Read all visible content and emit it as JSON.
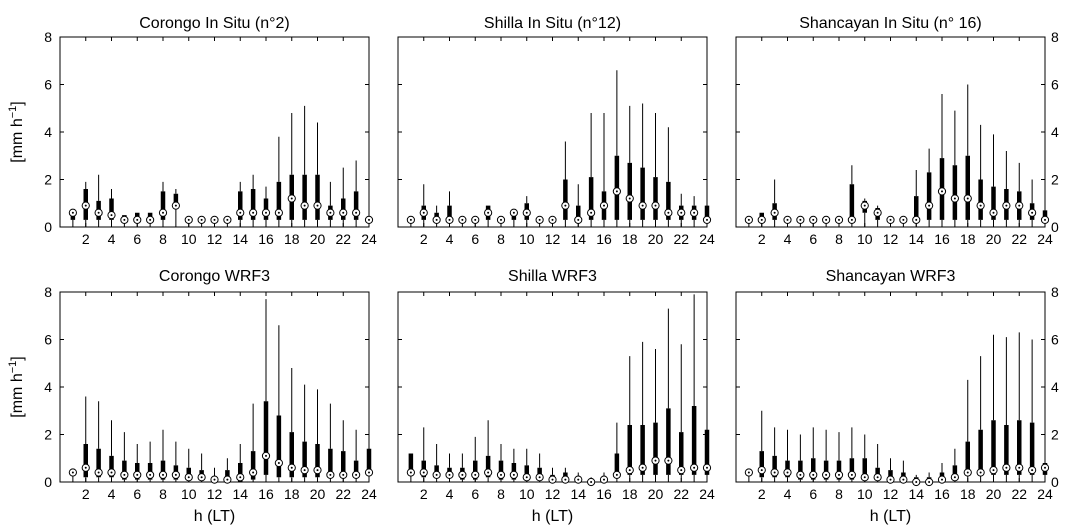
{
  "figure": {
    "xlabel": "h (LT)",
    "ylabel_html": [
      "[mm h",
      "−1",
      "]"
    ],
    "x_ticks": [
      2,
      4,
      6,
      8,
      10,
      12,
      14,
      16,
      18,
      20,
      22,
      24
    ],
    "y_ticks": [
      0,
      2,
      4,
      6,
      8
    ]
  },
  "chart_data": [
    {
      "type": "box",
      "title": "Corongo In Situ (n°2)",
      "xlim": [
        0,
        24
      ],
      "ylim": [
        0,
        8
      ],
      "hours": [
        1,
        2,
        3,
        4,
        5,
        6,
        7,
        8,
        9,
        10,
        11,
        12,
        13,
        14,
        15,
        16,
        17,
        18,
        19,
        20,
        21,
        22,
        23,
        24
      ],
      "q1": [
        0.3,
        0.3,
        0.3,
        0.3,
        0.3,
        0.3,
        0.3,
        0.3,
        0.9,
        0.3,
        0.3,
        0.3,
        0.3,
        0.3,
        0.3,
        0.3,
        0.3,
        0.3,
        0.3,
        0.3,
        0.3,
        0.3,
        0.3,
        0.3
      ],
      "q3": [
        0.6,
        1.6,
        1.1,
        1.2,
        0.5,
        0.6,
        0.6,
        1.5,
        1.4,
        0.3,
        0.3,
        0.3,
        0.3,
        1.5,
        1.6,
        1.2,
        1.9,
        2.2,
        2.2,
        2.2,
        0.9,
        1.2,
        1.5,
        0.3
      ],
      "whisk": [
        0.6,
        1.9,
        2.2,
        1.6,
        0.5,
        0.6,
        0.6,
        1.9,
        1.6,
        0.3,
        0.3,
        0.3,
        0.3,
        1.9,
        2.2,
        1.7,
        3.8,
        4.8,
        5.1,
        4.4,
        1.9,
        2.5,
        2.8,
        0.3
      ],
      "median": [
        0.6,
        0.9,
        0.6,
        0.5,
        0.3,
        0.3,
        0.3,
        0.6,
        0.9,
        0.3,
        0.3,
        0.3,
        0.3,
        0.6,
        0.6,
        0.6,
        0.6,
        1.2,
        0.9,
        0.9,
        0.6,
        0.6,
        0.6,
        0.3
      ]
    },
    {
      "type": "box",
      "title": "Shilla In Situ (n°12)",
      "xlim": [
        0,
        24
      ],
      "ylim": [
        0,
        8
      ],
      "hours": [
        1,
        2,
        3,
        4,
        5,
        6,
        7,
        8,
        9,
        10,
        11,
        12,
        13,
        14,
        15,
        16,
        17,
        18,
        19,
        20,
        21,
        22,
        23,
        24
      ],
      "q1": [
        0.3,
        0.3,
        0.3,
        0.3,
        0.3,
        0.3,
        0.3,
        0.3,
        0.3,
        0.3,
        0.3,
        0.3,
        0.3,
        0.3,
        0.3,
        0.3,
        0.3,
        0.3,
        0.3,
        0.3,
        0.3,
        0.3,
        0.3,
        0.3
      ],
      "q3": [
        0.3,
        0.9,
        0.6,
        0.9,
        0.3,
        0.3,
        0.9,
        0.3,
        0.6,
        1.0,
        0.3,
        0.3,
        2.0,
        0.9,
        2.1,
        1.5,
        3.0,
        2.7,
        2.5,
        2.1,
        1.9,
        0.9,
        0.9,
        0.9
      ],
      "whisk": [
        0.3,
        1.8,
        0.9,
        1.5,
        0.3,
        0.3,
        0.9,
        0.3,
        0.6,
        1.3,
        0.3,
        0.3,
        3.6,
        1.8,
        4.8,
        4.8,
        6.6,
        5.1,
        5.2,
        4.8,
        4.2,
        1.4,
        1.3,
        1.3
      ],
      "median": [
        0.3,
        0.6,
        0.3,
        0.3,
        0.3,
        0.3,
        0.6,
        0.3,
        0.6,
        0.6,
        0.3,
        0.3,
        0.9,
        0.3,
        0.6,
        0.9,
        1.5,
        1.2,
        0.9,
        0.9,
        0.6,
        0.6,
        0.6,
        0.3
      ]
    },
    {
      "type": "box",
      "title": "Shancayan In Situ (n° 16)",
      "xlim": [
        0,
        24
      ],
      "ylim": [
        0,
        8
      ],
      "hours": [
        1,
        2,
        3,
        4,
        5,
        6,
        7,
        8,
        9,
        10,
        11,
        12,
        13,
        14,
        15,
        16,
        17,
        18,
        19,
        20,
        21,
        22,
        23,
        24
      ],
      "q1": [
        0.3,
        0.3,
        0.3,
        0.3,
        0.3,
        0.3,
        0.3,
        0.3,
        0.3,
        0.6,
        0.3,
        0.3,
        0.3,
        0.3,
        0.3,
        0.3,
        0.3,
        0.3,
        0.3,
        0.3,
        0.3,
        0.3,
        0.3,
        0.3
      ],
      "q3": [
        0.3,
        0.6,
        1.0,
        0.3,
        0.3,
        0.3,
        0.3,
        0.3,
        1.8,
        1.1,
        0.8,
        0.3,
        0.3,
        1.3,
        2.3,
        2.9,
        2.6,
        3.0,
        2.0,
        1.7,
        1.6,
        1.5,
        1.0,
        0.7
      ],
      "whisk": [
        0.3,
        0.6,
        2.0,
        0.3,
        0.3,
        0.3,
        0.3,
        0.3,
        2.6,
        1.2,
        0.9,
        0.3,
        0.3,
        2.4,
        3.3,
        5.6,
        4.9,
        6.0,
        4.3,
        3.9,
        3.2,
        2.7,
        2.0,
        1.3
      ],
      "median": [
        0.3,
        0.3,
        0.6,
        0.3,
        0.3,
        0.3,
        0.3,
        0.3,
        0.3,
        0.9,
        0.6,
        0.3,
        0.3,
        0.3,
        0.9,
        1.5,
        1.2,
        1.2,
        0.9,
        0.6,
        0.9,
        0.9,
        0.6,
        0.3
      ]
    },
    {
      "type": "box",
      "title": "Corongo WRF3",
      "xlim": [
        0,
        24
      ],
      "ylim": [
        0,
        8
      ],
      "hours": [
        1,
        2,
        3,
        4,
        5,
        6,
        7,
        8,
        9,
        10,
        11,
        12,
        13,
        14,
        15,
        16,
        17,
        18,
        19,
        20,
        21,
        22,
        23,
        24
      ],
      "q1": [
        0.3,
        0.2,
        0.2,
        0.2,
        0.1,
        0.1,
        0.1,
        0.1,
        0.1,
        0.1,
        0.1,
        0.0,
        0.0,
        0.0,
        0.1,
        0.3,
        0.2,
        0.2,
        0.2,
        0.2,
        0.2,
        0.2,
        0.2,
        0.3
      ],
      "q3": [
        0.5,
        1.6,
        1.4,
        1.1,
        0.9,
        0.8,
        0.8,
        0.9,
        0.7,
        0.6,
        0.5,
        0.2,
        0.5,
        0.8,
        1.3,
        3.4,
        2.8,
        2.1,
        1.7,
        1.6,
        1.4,
        1.3,
        0.9,
        1.4
      ],
      "whisk": [
        0.5,
        3.6,
        3.4,
        2.6,
        2.1,
        1.6,
        1.7,
        2.2,
        1.7,
        1.4,
        1.2,
        0.6,
        1.0,
        1.6,
        3.3,
        7.7,
        6.6,
        4.8,
        4.1,
        3.9,
        3.3,
        2.6,
        2.2,
        2.4
      ],
      "median": [
        0.4,
        0.6,
        0.4,
        0.4,
        0.3,
        0.3,
        0.3,
        0.3,
        0.3,
        0.2,
        0.2,
        0.1,
        0.1,
        0.2,
        0.4,
        1.1,
        0.8,
        0.6,
        0.5,
        0.5,
        0.3,
        0.3,
        0.3,
        0.4
      ]
    },
    {
      "type": "box",
      "title": "Shilla WRF3",
      "xlim": [
        0,
        24
      ],
      "ylim": [
        0,
        8
      ],
      "hours": [
        1,
        2,
        3,
        4,
        5,
        6,
        7,
        8,
        9,
        10,
        11,
        12,
        13,
        14,
        15,
        16,
        17,
        18,
        19,
        20,
        21,
        22,
        23,
        24
      ],
      "q1": [
        0.3,
        0.2,
        0.2,
        0.2,
        0.1,
        0.1,
        0.2,
        0.1,
        0.1,
        0.1,
        0.1,
        0.0,
        0.0,
        0.0,
        0.0,
        0.0,
        0.3,
        0.3,
        0.3,
        0.3,
        0.3,
        0.3,
        0.3,
        0.3
      ],
      "q3": [
        1.2,
        0.9,
        0.7,
        0.6,
        0.6,
        0.9,
        1.1,
        0.9,
        0.8,
        0.7,
        0.6,
        0.3,
        0.4,
        0.2,
        0.1,
        0.2,
        1.2,
        2.4,
        2.4,
        2.5,
        3.1,
        2.1,
        3.2,
        2.2
      ],
      "whisk": [
        1.2,
        2.3,
        1.6,
        1.2,
        1.2,
        1.9,
        2.6,
        1.6,
        1.4,
        1.4,
        1.2,
        0.6,
        0.6,
        0.4,
        0.2,
        0.4,
        2.5,
        5.3,
        5.9,
        5.6,
        7.3,
        5.8,
        7.9,
        5.5
      ],
      "median": [
        0.4,
        0.4,
        0.3,
        0.3,
        0.3,
        0.3,
        0.4,
        0.3,
        0.3,
        0.2,
        0.2,
        0.1,
        0.1,
        0.1,
        0.0,
        0.1,
        0.3,
        0.5,
        0.6,
        0.9,
        0.9,
        0.5,
        0.6,
        0.6
      ]
    },
    {
      "type": "box",
      "title": "Shancayan WRF3",
      "xlim": [
        0,
        24
      ],
      "ylim": [
        0,
        8
      ],
      "hours": [
        1,
        2,
        3,
        4,
        5,
        6,
        7,
        8,
        9,
        10,
        11,
        12,
        13,
        14,
        15,
        16,
        17,
        18,
        19,
        20,
        21,
        22,
        23,
        24
      ],
      "q1": [
        0.3,
        0.2,
        0.2,
        0.2,
        0.1,
        0.1,
        0.1,
        0.1,
        0.1,
        0.1,
        0.1,
        0.0,
        0.0,
        0.0,
        0.0,
        0.0,
        0.1,
        0.3,
        0.3,
        0.3,
        0.3,
        0.3,
        0.3,
        0.3
      ],
      "q3": [
        0.5,
        1.3,
        1.1,
        0.9,
        0.9,
        1.0,
        0.9,
        0.9,
        1.0,
        1.0,
        0.6,
        0.5,
        0.4,
        0.2,
        0.2,
        0.4,
        0.7,
        1.7,
        2.2,
        2.6,
        2.4,
        2.6,
        2.5,
        0.8
      ],
      "whisk": [
        0.5,
        3.0,
        2.3,
        2.2,
        2.0,
        2.3,
        2.2,
        2.1,
        2.3,
        2.0,
        1.6,
        1.0,
        0.9,
        0.3,
        0.4,
        0.8,
        1.4,
        4.3,
        5.3,
        6.2,
        6.1,
        6.3,
        6.0,
        1.6
      ],
      "median": [
        0.4,
        0.5,
        0.4,
        0.4,
        0.3,
        0.3,
        0.3,
        0.3,
        0.3,
        0.2,
        0.2,
        0.1,
        0.1,
        0.0,
        0.0,
        0.1,
        0.2,
        0.4,
        0.4,
        0.5,
        0.6,
        0.6,
        0.5,
        0.6
      ]
    }
  ]
}
